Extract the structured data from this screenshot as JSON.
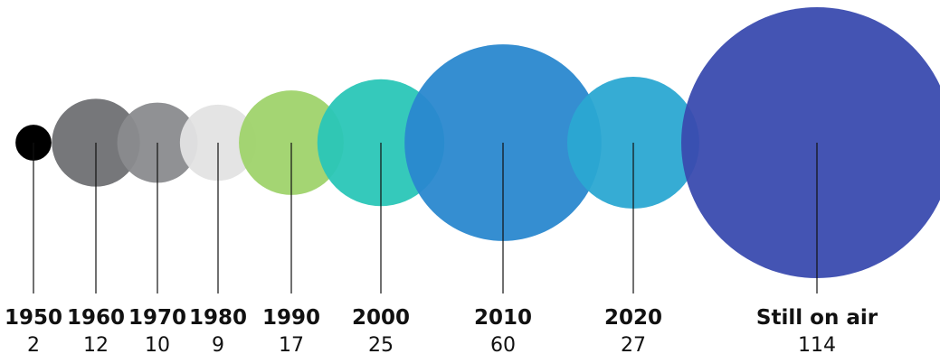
{
  "chart_data": {
    "type": "bubble",
    "categories": [
      "1950",
      "1960",
      "1970",
      "1980",
      "1990",
      "2000",
      "2010",
      "2020",
      "Still on air"
    ],
    "values": [
      2,
      12,
      10,
      9,
      17,
      25,
      60,
      27,
      114
    ],
    "colors": [
      "#000000",
      "#6f7073",
      "#8a8b8e",
      "#e3e3e3",
      "#9fd36b",
      "#2ac6b7",
      "#2a88cf",
      "#2ba8d2",
      "#3a4baf"
    ],
    "title": "",
    "xlabel": "",
    "ylabel": "",
    "grid": false,
    "legend": "none"
  }
}
